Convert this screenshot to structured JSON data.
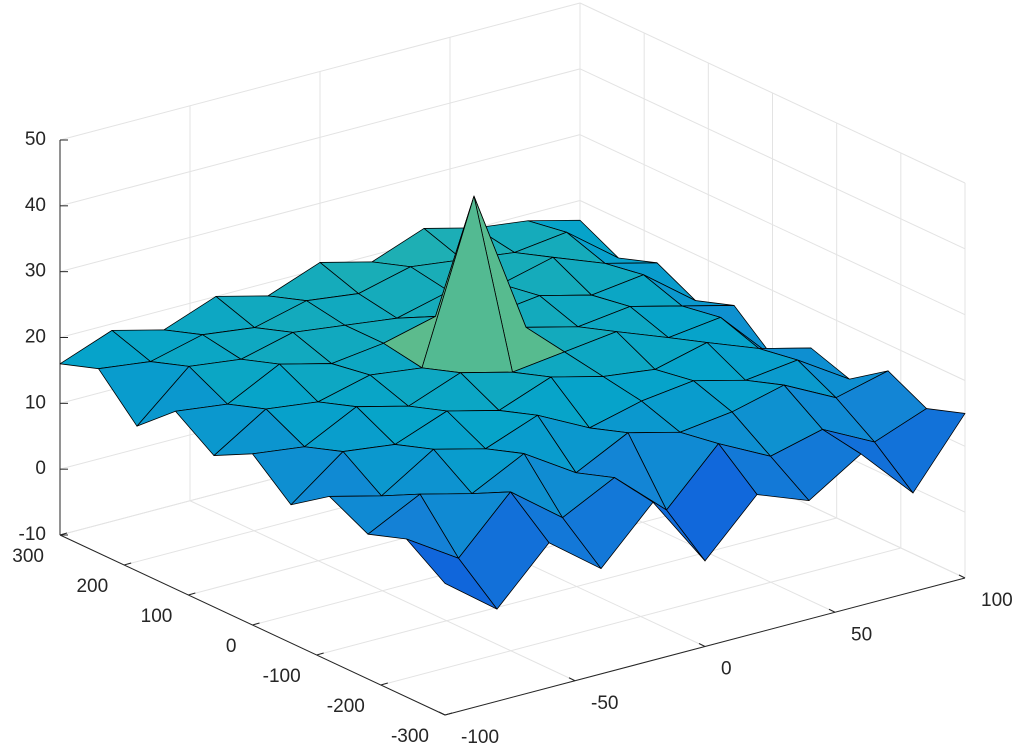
{
  "chart_data": {
    "type": "surface",
    "x": [
      -100,
      -80,
      -60,
      -40,
      -20,
      0,
      20,
      40,
      60,
      80,
      100
    ],
    "y": [
      -300,
      -240,
      -180,
      -120,
      -60,
      0,
      60,
      120,
      180,
      240,
      300
    ],
    "z": [
      [
        10,
        4,
        12,
        6,
        14,
        3,
        11,
        8,
        13,
        5,
        15
      ],
      [
        14,
        9,
        17,
        11,
        15,
        8,
        16,
        12,
        14,
        10,
        13
      ],
      [
        12,
        16,
        14,
        18,
        13,
        17,
        15,
        16,
        18,
        14,
        16
      ],
      [
        15,
        13,
        18,
        16,
        19,
        15,
        17,
        18,
        16,
        17,
        12
      ],
      [
        11,
        17,
        16,
        19,
        17,
        20,
        18,
        17,
        19,
        16,
        14
      ],
      [
        16,
        15,
        19,
        17,
        20,
        18,
        19,
        20,
        17,
        18,
        10
      ],
      [
        13,
        18,
        17,
        19,
        18,
        42,
        20,
        18,
        19,
        17,
        15
      ],
      [
        17,
        16,
        20,
        18,
        19,
        21,
        19,
        20,
        18,
        19,
        13
      ],
      [
        12,
        19,
        18,
        20,
        19,
        18,
        20,
        19,
        21,
        18,
        16
      ],
      [
        18,
        17,
        19,
        18,
        20,
        19,
        21,
        20,
        19,
        20,
        14
      ],
      [
        16,
        19,
        17,
        20,
        18,
        21,
        19,
        22,
        20,
        19,
        17
      ]
    ],
    "xlim": [
      -100,
      100
    ],
    "xticks": [
      -100,
      -50,
      0,
      50,
      100
    ],
    "ylim": [
      -300,
      300
    ],
    "yticks": [
      -300,
      -200,
      -100,
      0,
      100,
      200,
      300
    ],
    "zlim": [
      -10,
      50
    ],
    "zticks": [
      -10,
      0,
      10,
      20,
      30,
      40,
      50
    ],
    "grid": true,
    "edgecolor": "#000000",
    "colormap": [
      "#352a87",
      "#0f5cdd",
      "#1481d6",
      "#06a4ca",
      "#2eb7a4",
      "#87bf77",
      "#d1bb59",
      "#fec832",
      "#f9fb0e"
    ]
  }
}
